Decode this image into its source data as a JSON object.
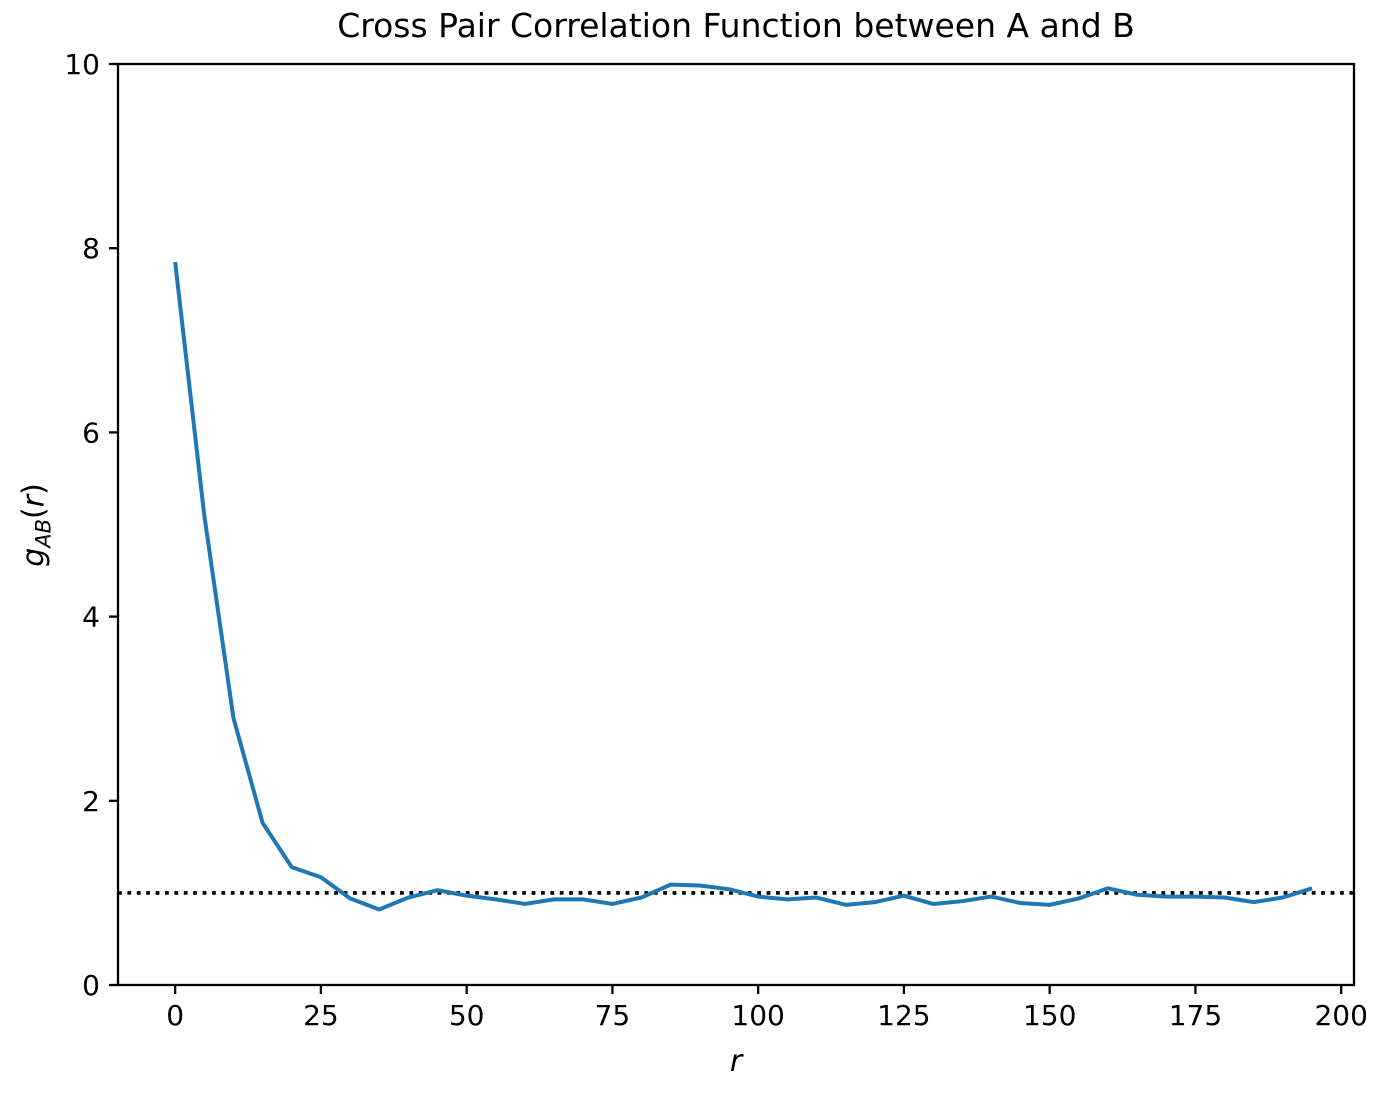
{
  "chart_data": {
    "type": "line",
    "title": "Cross Pair Correlation Function between A and B",
    "xlabel": "r",
    "ylabel": "g_AB(r)",
    "ylabel_parts": {
      "base": "g",
      "sub": "AB",
      "open_paren": "(",
      "arg": "r",
      "close_paren": ")"
    },
    "x": [
      0,
      5,
      10,
      15,
      20,
      25,
      30,
      35,
      40,
      45,
      50,
      55,
      60,
      65,
      70,
      75,
      80,
      85,
      90,
      95,
      100,
      105,
      110,
      115,
      120,
      125,
      130,
      135,
      140,
      145,
      150,
      155,
      160,
      165,
      170,
      175,
      180,
      185,
      190,
      195
    ],
    "series": [
      {
        "name": "g_AB(r)",
        "color": "#1f77b4",
        "values": [
          7.85,
          5.1,
          2.9,
          1.76,
          1.28,
          1.17,
          0.94,
          0.82,
          0.95,
          1.03,
          0.97,
          0.93,
          0.88,
          0.93,
          0.93,
          0.88,
          0.95,
          1.09,
          1.08,
          1.04,
          0.96,
          0.93,
          0.95,
          0.87,
          0.9,
          0.97,
          0.88,
          0.91,
          0.96,
          0.89,
          0.87,
          0.94,
          1.05,
          0.98,
          0.96,
          0.96,
          0.95,
          0.9,
          0.95,
          1.05
        ]
      }
    ],
    "reference_line": {
      "y": 1.0,
      "style": "dotted",
      "color": "#000000"
    },
    "xlim": [
      -9.8,
      202.2
    ],
    "ylim": [
      0,
      10
    ],
    "xticks": [
      0,
      25,
      50,
      75,
      100,
      125,
      150,
      175,
      200
    ],
    "yticks": [
      0,
      2,
      4,
      6,
      8,
      10
    ],
    "grid": false,
    "legend_position": "none",
    "axis_color": "#000000"
  }
}
